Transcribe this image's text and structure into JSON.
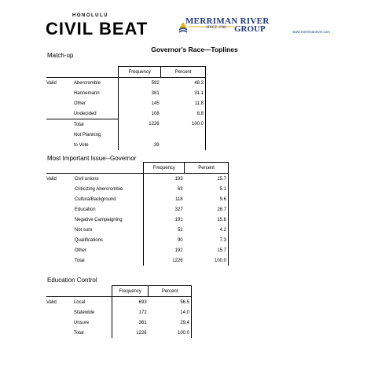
{
  "header": {
    "civil_beat_small": "HONOLULU",
    "civil_beat_big": "CIVIL BEAT",
    "merriman_line1": "MERRIMAN RIVER",
    "merriman_since": "SINCE 1998",
    "merriman_group": "GROUP",
    "merriman_url": "www.merrimanriver.com"
  },
  "title": "Governor's Race—Toplines",
  "matchup": {
    "title": "Match-up",
    "col_freq": "Frequency",
    "col_pct": "Percent",
    "valid": "Valid",
    "rows": [
      {
        "label": "Abercrombie",
        "freq": "592",
        "pct": "48.3"
      },
      {
        "label": "Hannemann",
        "freq": "381",
        "pct": "31.1"
      },
      {
        "label": "Other",
        "freq": "145",
        "pct": "11.8"
      },
      {
        "label": "Undecided",
        "freq": "108",
        "pct": "8.8"
      },
      {
        "label": "Total",
        "freq": "1226",
        "pct": "100.0"
      }
    ],
    "extra_label_1": "Not Planning",
    "extra_label_2": "to Vote",
    "extra_freq": "39"
  },
  "issue": {
    "title": "Most Important Issue--Governor",
    "col_freq": "Frequency",
    "col_pct": "Percent",
    "valid": "Valid",
    "rows": [
      {
        "label": "Civil unions",
        "freq": "193",
        "pct": "15.7"
      },
      {
        "label": "Criticizing Abercrombie",
        "freq": "63",
        "pct": "5.1"
      },
      {
        "label": "CulturalBackground",
        "freq": "118",
        "pct": "9.6"
      },
      {
        "label": "Education",
        "freq": "327",
        "pct": "26.7"
      },
      {
        "label": "Negative Campaigning",
        "freq": "191",
        "pct": "15.6"
      },
      {
        "label": "Not sure",
        "freq": "52",
        "pct": "4.2"
      },
      {
        "label": "Qualifications",
        "freq": "90",
        "pct": "7.3"
      },
      {
        "label": "Other",
        "freq": "192",
        "pct": "15.7"
      },
      {
        "label": "Total",
        "freq": "1226",
        "pct": "100.0"
      }
    ]
  },
  "education": {
    "title": "Education Control",
    "col_freq": "Frequency",
    "col_pct": "Percent",
    "valid": "Valid",
    "rows": [
      {
        "label": "Local",
        "freq": "693",
        "pct": "56.5"
      },
      {
        "label": "Statewide",
        "freq": "172",
        "pct": "14.0"
      },
      {
        "label": "Unsure",
        "freq": "361",
        "pct": "29.4"
      },
      {
        "label": "Total",
        "freq": "1226",
        "pct": "100.0"
      }
    ]
  }
}
